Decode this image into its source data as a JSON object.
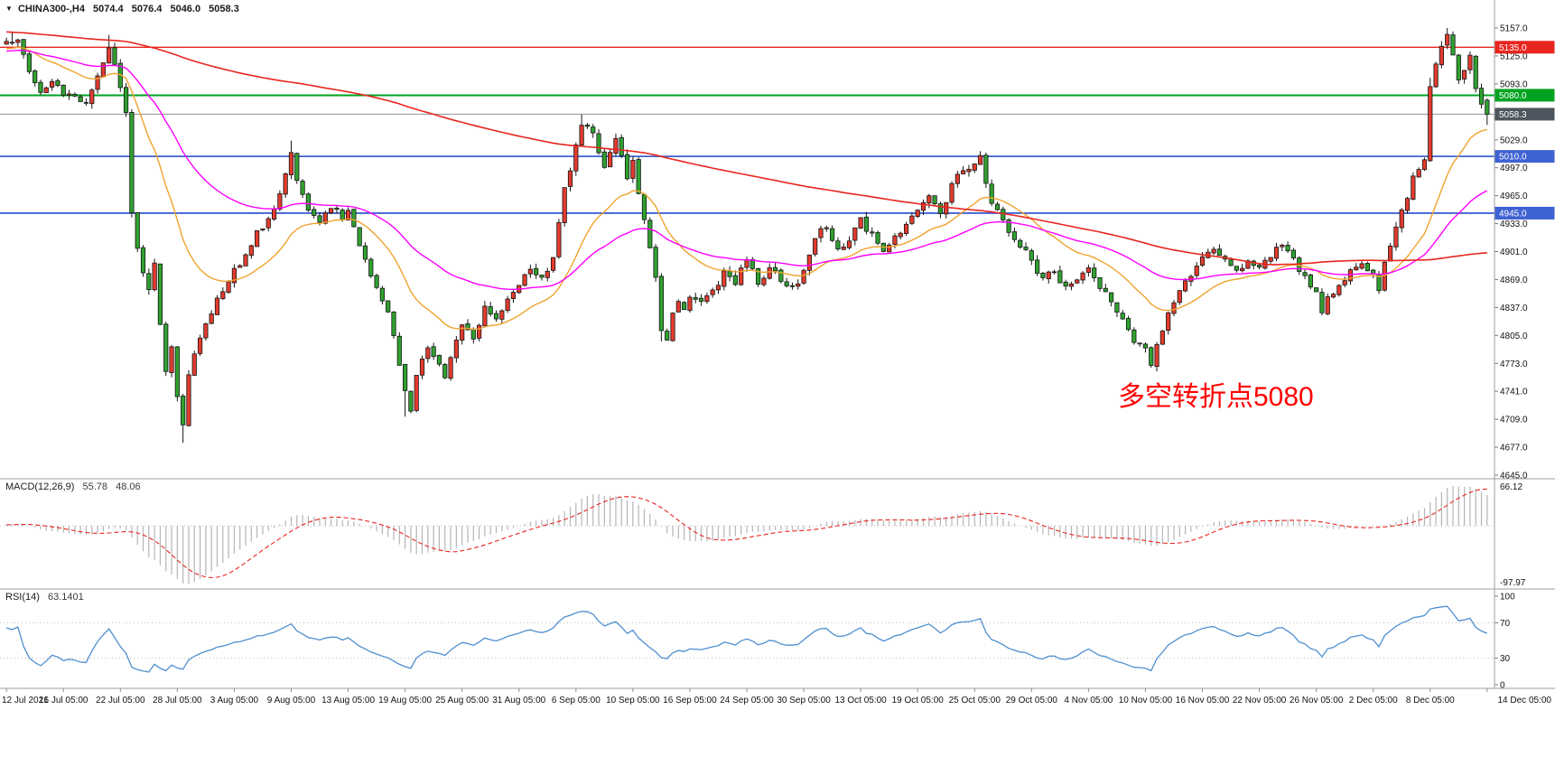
{
  "header": {
    "dropdown_icon": "▼",
    "symbol_period": "CHINA300-,H4",
    "open": "5074.4",
    "high": "5076.4",
    "low": "5046.0",
    "close": "5058.3"
  },
  "colors": {
    "background": "#ffffff",
    "border": "#9e9e9e",
    "axis_text": "#111111",
    "up_candle": "#e23b2e",
    "down_candle": "#2fa12f",
    "candle_outline": "#161616",
    "macd_histogram": "#b5b5b5",
    "macd_signal": "#e8261f",
    "rsi_line": "#4f8fd0",
    "level_dotted": "#bdbdbd"
  },
  "chart_data": {
    "type": "candlestick",
    "symbol": "CHINA300-",
    "timeframe": "H4",
    "title": "CHINA300-,H4 5074.4 5076.4 5046.0 5058.3",
    "last_candle": {
      "open": 5074.4,
      "high": 5076.4,
      "low": 5046.0,
      "close": 5058.3
    },
    "price_axis": {
      "min": 4645.0,
      "max": 5157.0,
      "tick_step": 32,
      "ticks": [
        5157.0,
        5125.0,
        5093.0,
        5061.0,
        5029.0,
        4997.0,
        4965.0,
        4933.0,
        4901.0,
        4869.0,
        4837.0,
        4805.0,
        4773.0,
        4741.0,
        4709.0,
        4677.0,
        4645.0
      ]
    },
    "time_axis": [
      "12 Jul 2021",
      "16 Jul 05:00",
      "22 Jul 05:00",
      "28 Jul 05:00",
      "3 Aug 05:00",
      "9 Aug 05:00",
      "13 Aug 05:00",
      "19 Aug 05:00",
      "25 Aug 05:00",
      "31 Aug 05:00",
      "6 Sep 05:00",
      "10 Sep 05:00",
      "16 Sep 05:00",
      "24 Sep 05:00",
      "30 Sep 05:00",
      "13 Oct 05:00",
      "19 Oct 05:00",
      "25 Oct 05:00",
      "29 Oct 05:00",
      "4 Nov 05:00",
      "10 Nov 05:00",
      "16 Nov 05:00",
      "22 Nov 05:00",
      "26 Nov 05:00",
      "2 Dec 05:00",
      "8 Dec 05:00",
      "14 Dec 05:00"
    ],
    "bars_per_label": 10,
    "horizontal_lines": [
      {
        "price": 5135.0,
        "label": "5135.0",
        "color": "#e8261f",
        "width": 1.4,
        "badge_bg": "#e8261f"
      },
      {
        "price": 5080.0,
        "label": "5080.0",
        "color": "#00a321",
        "width": 2,
        "badge_bg": "#00a321"
      },
      {
        "price": 5010.0,
        "label": "5010.0",
        "color": "#3f62d2",
        "width": 1.8,
        "badge_bg": "#3f62d2"
      },
      {
        "price": 4945.0,
        "label": "4945.0",
        "color": "#3f62d2",
        "width": 1.8,
        "badge_bg": "#3f62d2"
      }
    ],
    "current_price": {
      "value": 5058.3,
      "label": "5058.3",
      "line_color": "#8f9499",
      "badge_bg": "#4e555e"
    },
    "moving_averages": [
      {
        "name": "ma-fast-orange",
        "type": "ema",
        "period": 20,
        "color": "#efa32e",
        "width": 1.4
      },
      {
        "name": "ma-mid-magenta",
        "type": "ema",
        "period": 50,
        "color": "#ff00ff",
        "width": 1.4
      },
      {
        "name": "ma-slow-red",
        "type": "sma",
        "period": 200,
        "color": "#e8261f",
        "width": 1.6
      }
    ],
    "indicators": [
      {
        "name": "MACD",
        "label": "MACD(12,26,9)",
        "params": [
          12,
          26,
          9
        ],
        "value_main": "55.78",
        "value_signal": "48.06",
        "axis_top": "66.12",
        "axis_bottom": "-97.97"
      },
      {
        "name": "RSI",
        "label": "RSI(14)",
        "params": [
          14
        ],
        "value": "63.1401",
        "levels": [
          70,
          30
        ],
        "axis_labels": [
          "100",
          "70",
          "30",
          "0"
        ]
      }
    ],
    "annotations": [
      {
        "text": "多空转折点5080",
        "color": "#ff0000",
        "meaning_level": 5080
      }
    ],
    "candles": {
      "bars_visible": 261,
      "preroll": 200,
      "price_path": [
        [
          -200,
          5210
        ],
        [
          -160,
          5185
        ],
        [
          -120,
          5150
        ],
        [
          -80,
          5135
        ],
        [
          -40,
          5118
        ],
        [
          -20,
          5132
        ],
        [
          -8,
          5128
        ],
        [
          0,
          5138
        ],
        [
          2,
          5142
        ],
        [
          4,
          5105
        ],
        [
          6,
          5085
        ],
        [
          8,
          5095
        ],
        [
          10,
          5082
        ],
        [
          12,
          5075
        ],
        [
          14,
          5070
        ],
        [
          16,
          5098
        ],
        [
          18,
          5135
        ],
        [
          19,
          5112
        ],
        [
          20,
          5088
        ],
        [
          21,
          5062
        ],
        [
          22,
          4945
        ],
        [
          23,
          4902
        ],
        [
          24,
          4878
        ],
        [
          25,
          4858
        ],
        [
          26,
          4884
        ],
        [
          27,
          4820
        ],
        [
          28,
          4762
        ],
        [
          29,
          4790
        ],
        [
          30,
          4738
        ],
        [
          31,
          4702
        ],
        [
          32,
          4758
        ],
        [
          33,
          4788
        ],
        [
          34,
          4806
        ],
        [
          36,
          4832
        ],
        [
          38,
          4858
        ],
        [
          40,
          4878
        ],
        [
          42,
          4900
        ],
        [
          44,
          4922
        ],
        [
          46,
          4938
        ],
        [
          48,
          4968
        ],
        [
          50,
          5015
        ],
        [
          51,
          4985
        ],
        [
          53,
          4948
        ],
        [
          55,
          4932
        ],
        [
          57,
          4952
        ],
        [
          59,
          4940
        ],
        [
          60,
          4946
        ],
        [
          62,
          4905
        ],
        [
          64,
          4872
        ],
        [
          66,
          4848
        ],
        [
          68,
          4808
        ],
        [
          69,
          4775
        ],
        [
          70,
          4740
        ],
        [
          71,
          4722
        ],
        [
          72,
          4762
        ],
        [
          74,
          4792
        ],
        [
          76,
          4775
        ],
        [
          77,
          4755
        ],
        [
          78,
          4782
        ],
        [
          80,
          4818
        ],
        [
          82,
          4800
        ],
        [
          84,
          4835
        ],
        [
          86,
          4820
        ],
        [
          88,
          4846
        ],
        [
          90,
          4864
        ],
        [
          92,
          4882
        ],
        [
          94,
          4870
        ],
        [
          96,
          4895
        ],
        [
          98,
          4975
        ],
        [
          100,
          5020
        ],
        [
          101,
          5045
        ],
        [
          103,
          5040
        ],
        [
          105,
          4995
        ],
        [
          107,
          5030
        ],
        [
          109,
          4988
        ],
        [
          110,
          5002
        ],
        [
          111,
          4968
        ],
        [
          112,
          4938
        ],
        [
          113,
          4905
        ],
        [
          114,
          4870
        ],
        [
          115,
          4812
        ],
        [
          116,
          4800
        ],
        [
          117,
          4828
        ],
        [
          118,
          4845
        ],
        [
          119,
          4836
        ],
        [
          120,
          4852
        ],
        [
          122,
          4840
        ],
        [
          124,
          4858
        ],
        [
          126,
          4875
        ],
        [
          128,
          4866
        ],
        [
          130,
          4895
        ],
        [
          132,
          4862
        ],
        [
          134,
          4882
        ],
        [
          136,
          4870
        ],
        [
          138,
          4858
        ],
        [
          140,
          4876
        ],
        [
          142,
          4916
        ],
        [
          144,
          4932
        ],
        [
          146,
          4902
        ],
        [
          148,
          4916
        ],
        [
          150,
          4936
        ],
        [
          152,
          4920
        ],
        [
          154,
          4898
        ],
        [
          156,
          4916
        ],
        [
          158,
          4936
        ],
        [
          160,
          4946
        ],
        [
          162,
          4962
        ],
        [
          164,
          4942
        ],
        [
          166,
          4976
        ],
        [
          168,
          4996
        ],
        [
          170,
          5002
        ],
        [
          171,
          5014
        ],
        [
          172,
          4975
        ],
        [
          174,
          4945
        ],
        [
          176,
          4925
        ],
        [
          178,
          4910
        ],
        [
          180,
          4890
        ],
        [
          182,
          4868
        ],
        [
          184,
          4880
        ],
        [
          186,
          4858
        ],
        [
          188,
          4870
        ],
        [
          190,
          4880
        ],
        [
          192,
          4862
        ],
        [
          194,
          4845
        ],
        [
          196,
          4825
        ],
        [
          198,
          4800
        ],
        [
          200,
          4788
        ],
        [
          201,
          4772
        ],
        [
          202,
          4794
        ],
        [
          204,
          4830
        ],
        [
          206,
          4856
        ],
        [
          208,
          4876
        ],
        [
          210,
          4892
        ],
        [
          212,
          4902
        ],
        [
          214,
          4894
        ],
        [
          216,
          4880
        ],
        [
          218,
          4888
        ],
        [
          220,
          4882
        ],
        [
          222,
          4898
        ],
        [
          224,
          4908
        ],
        [
          226,
          4890
        ],
        [
          228,
          4870
        ],
        [
          230,
          4852
        ],
        [
          231,
          4832
        ],
        [
          232,
          4846
        ],
        [
          234,
          4862
        ],
        [
          236,
          4878
        ],
        [
          238,
          4886
        ],
        [
          240,
          4872
        ],
        [
          241,
          4858
        ],
        [
          242,
          4888
        ],
        [
          243,
          4906
        ],
        [
          244,
          4928
        ],
        [
          245,
          4948
        ],
        [
          246,
          4962
        ],
        [
          247,
          4986
        ],
        [
          248,
          4998
        ],
        [
          249,
          5006
        ],
        [
          250,
          5092
        ],
        [
          251,
          5116
        ],
        [
          252,
          5136
        ],
        [
          253,
          5148
        ],
        [
          254,
          5124
        ],
        [
          255,
          5096
        ],
        [
          256,
          5112
        ],
        [
          257,
          5124
        ],
        [
          258,
          5086
        ],
        [
          259,
          5072
        ],
        [
          260,
          5058.3
        ]
      ],
      "forced_extremes": [
        [
          1,
          "h",
          5152
        ],
        [
          18,
          "h",
          5149
        ],
        [
          31,
          "l",
          4682
        ],
        [
          50,
          "h",
          5028
        ],
        [
          70,
          "l",
          4712
        ],
        [
          101,
          "h",
          5058
        ],
        [
          115,
          "l",
          4798
        ],
        [
          171,
          "h",
          5016
        ],
        [
          201,
          "l",
          4768
        ],
        [
          250,
          "h",
          5100
        ],
        [
          253,
          "h",
          5157
        ]
      ]
    }
  }
}
